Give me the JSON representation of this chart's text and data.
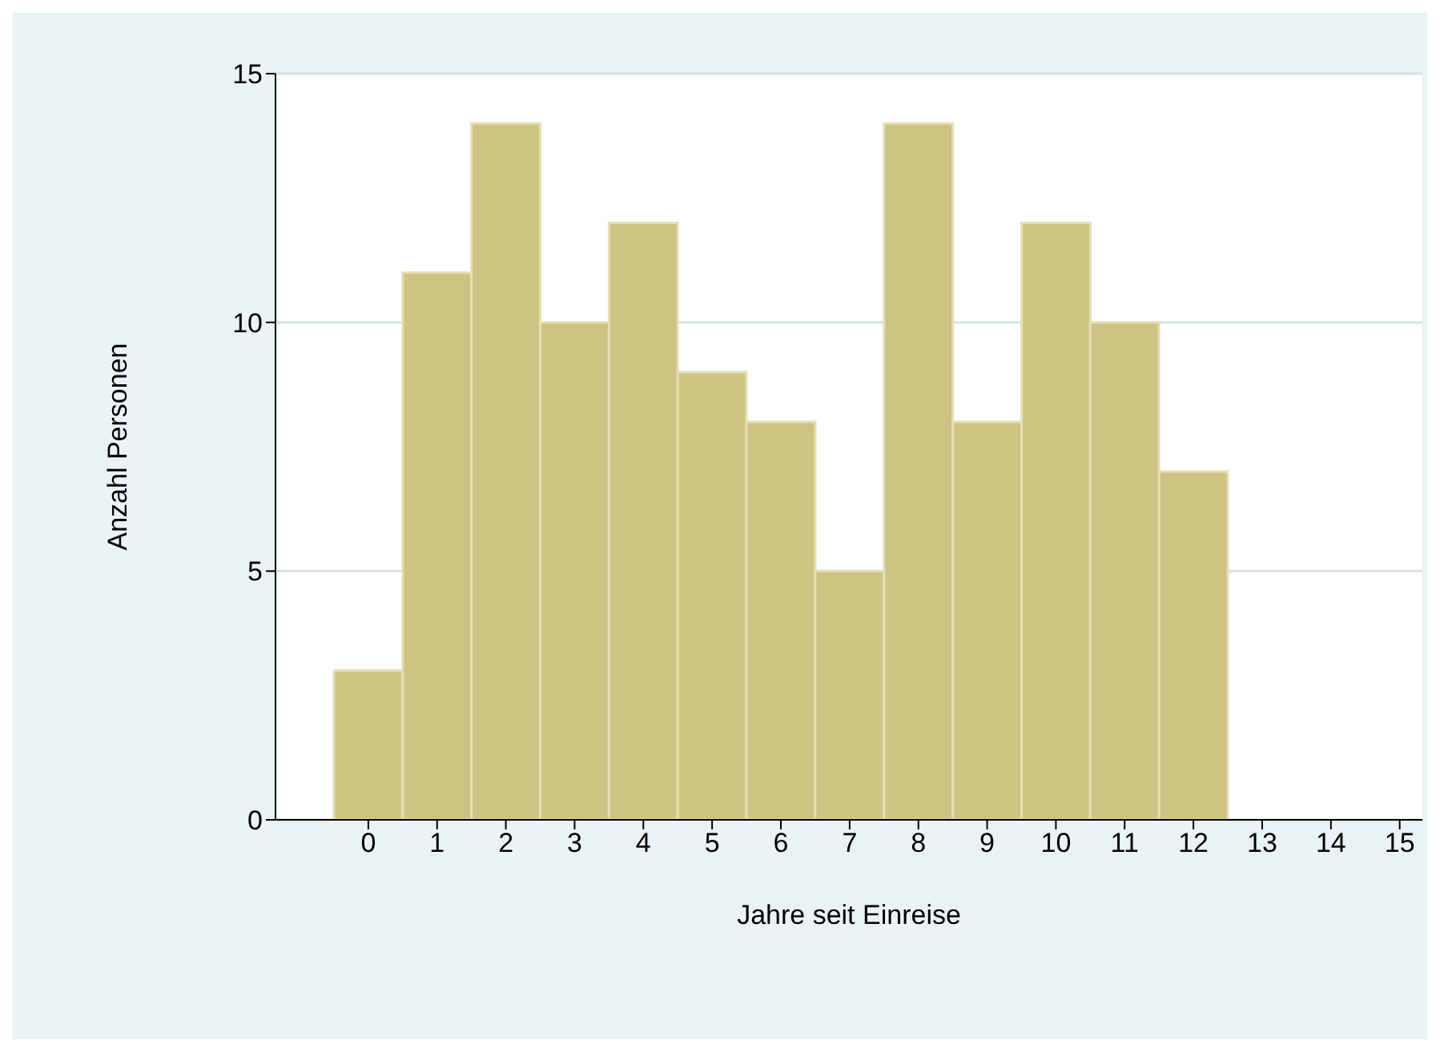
{
  "chart_data": {
    "type": "histogram",
    "xlabel": "Jahre seit Einreise",
    "ylabel": "Anzahl Personen",
    "bins": [
      -0.5,
      0.5,
      1.5,
      2.5,
      3.5,
      4.5,
      5.5,
      6.5,
      7.5,
      8.5,
      9.5,
      10.5,
      11.5,
      12.5
    ],
    "values": [
      3,
      11,
      14,
      10,
      12,
      9,
      8,
      5,
      14,
      8,
      12,
      10,
      7
    ],
    "color": "#cdc383",
    "xlim": [
      -1.35,
      15.33
    ],
    "xticks": [
      0,
      1,
      2,
      3,
      4,
      5,
      6,
      7,
      8,
      9,
      10,
      11,
      12,
      13,
      14,
      15
    ],
    "ylim": [
      0,
      15
    ],
    "yticks": [
      0,
      5,
      10,
      15
    ],
    "grid": "y"
  }
}
